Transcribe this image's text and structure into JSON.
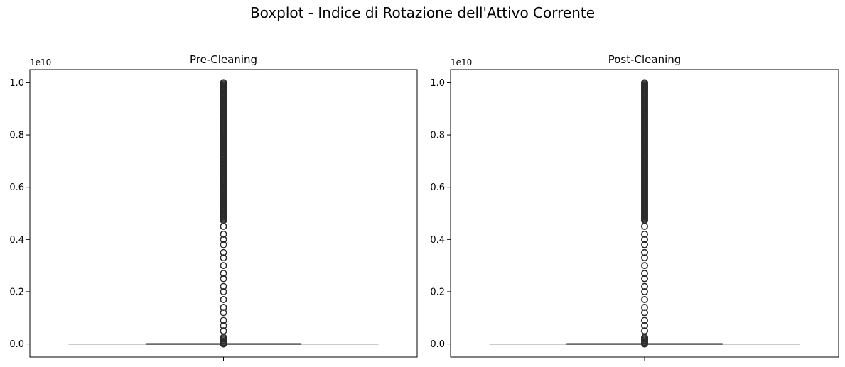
{
  "suptitle": "Boxplot - Indice di Rotazione dell'Attivo Corrente",
  "colors": {
    "box_line": "#2b2b2b",
    "axes": "#000000",
    "background": "#ffffff"
  },
  "chart_data": [
    {
      "type": "boxplot",
      "title": "Pre-Cleaning",
      "xlabel": "",
      "ylabel": "",
      "offset_label": "1e10",
      "ylim": [
        -0.05,
        1.05
      ],
      "y_ticks": [
        0.0,
        0.2,
        0.4,
        0.6,
        0.8,
        1.0
      ],
      "y_tick_labels": [
        "0.0",
        "0.2",
        "0.4",
        "0.6",
        "0.8",
        "1.0"
      ],
      "x_ticks": [
        ""
      ],
      "box": {
        "q1": 0.0,
        "median": 0.0,
        "q3": 0.0,
        "whisker_low": 0.0,
        "whisker_high": 0.0
      },
      "outliers_dense_range": [
        0.0,
        1.0
      ],
      "outliers_sparse": [
        0.02,
        0.05,
        0.07,
        0.09,
        0.12,
        0.14,
        0.17,
        0.2,
        0.22,
        0.25,
        0.27,
        0.3,
        0.33,
        0.35,
        0.38,
        0.4,
        0.42,
        0.45
      ]
    },
    {
      "type": "boxplot",
      "title": "Post-Cleaning",
      "xlabel": "",
      "ylabel": "",
      "offset_label": "1e10",
      "ylim": [
        -0.05,
        1.05
      ],
      "y_ticks": [
        0.0,
        0.2,
        0.4,
        0.6,
        0.8,
        1.0
      ],
      "y_tick_labels": [
        "0.0",
        "0.2",
        "0.4",
        "0.6",
        "0.8",
        "1.0"
      ],
      "x_ticks": [
        ""
      ],
      "box": {
        "q1": 0.0,
        "median": 0.0,
        "q3": 0.0,
        "whisker_low": 0.0,
        "whisker_high": 0.0
      },
      "outliers_dense_range": [
        0.0,
        1.0
      ],
      "outliers_sparse": [
        0.02,
        0.05,
        0.07,
        0.09,
        0.12,
        0.14,
        0.17,
        0.2,
        0.22,
        0.25,
        0.27,
        0.3,
        0.33,
        0.35,
        0.38,
        0.4,
        0.42,
        0.45
      ]
    }
  ]
}
